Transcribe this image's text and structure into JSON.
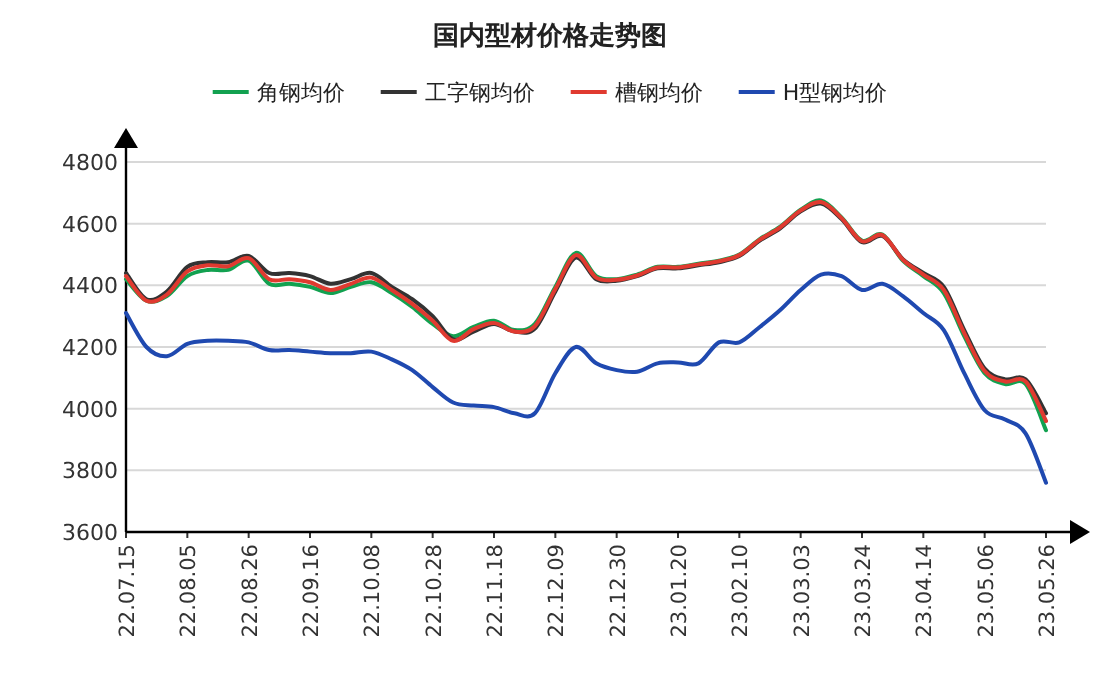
{
  "chart_data": {
    "type": "line",
    "title": "国内型材价格走势图",
    "categories": [
      "22.07.15",
      null,
      null,
      "22.08.05",
      null,
      null,
      "22.08.26",
      null,
      null,
      "22.09.16",
      null,
      null,
      "22.10.08",
      null,
      null,
      "22.10.28",
      null,
      null,
      "22.11.18",
      null,
      null,
      "22.12.09",
      null,
      null,
      "22.12.30",
      null,
      null,
      "23.01.20",
      null,
      null,
      "23.02.10",
      null,
      null,
      "23.03.03",
      null,
      null,
      "23.03.24",
      null,
      null,
      "23.04.14",
      null,
      null,
      "23.05.06",
      null,
      null,
      "23.05.26"
    ],
    "series": [
      {
        "name": "角钢均价",
        "color": "#12a150",
        "values": [
          4420,
          4350,
          4365,
          4430,
          4450,
          4450,
          4480,
          4405,
          4405,
          4395,
          4375,
          4395,
          4410,
          4375,
          4330,
          4275,
          4235,
          4265,
          4285,
          4255,
          4275,
          4395,
          4505,
          4430,
          4420,
          4435,
          4460,
          4460,
          4470,
          4480,
          4500,
          4550,
          4590,
          4645,
          4675,
          4620,
          4545,
          4565,
          4480,
          4430,
          4375,
          4235,
          4115,
          4080,
          4080,
          3930
        ]
      },
      {
        "name": "工字钢均价",
        "color": "#333333",
        "values": [
          4440,
          4355,
          4380,
          4460,
          4475,
          4475,
          4495,
          4440,
          4440,
          4430,
          4405,
          4420,
          4440,
          4395,
          4355,
          4300,
          4225,
          4250,
          4275,
          4250,
          4260,
          4380,
          4490,
          4420,
          4415,
          4430,
          4455,
          4455,
          4465,
          4475,
          4495,
          4545,
          4585,
          4640,
          4665,
          4615,
          4540,
          4560,
          4485,
          4440,
          4395,
          4255,
          4130,
          4095,
          4095,
          3985
        ]
      },
      {
        "name": "槽钢均价",
        "color": "#e03a30",
        "values": [
          4430,
          4350,
          4370,
          4445,
          4465,
          4462,
          4488,
          4420,
          4420,
          4410,
          4385,
          4405,
          4425,
          4385,
          4340,
          4285,
          4220,
          4258,
          4278,
          4250,
          4268,
          4388,
          4498,
          4425,
          4418,
          4432,
          4458,
          4458,
          4468,
          4478,
          4498,
          4548,
          4588,
          4643,
          4670,
          4618,
          4543,
          4563,
          4483,
          4435,
          4385,
          4245,
          4122,
          4088,
          4088,
          3960
        ]
      },
      {
        "name": "H型钢均价",
        "color": "#1f49b0",
        "values": [
          4310,
          4200,
          4170,
          4210,
          4220,
          4220,
          4215,
          4190,
          4190,
          4185,
          4180,
          4180,
          4185,
          4160,
          4125,
          4070,
          4020,
          4010,
          4005,
          3985,
          3985,
          4115,
          4200,
          4147,
          4125,
          4120,
          4147,
          4150,
          4147,
          4215,
          4215,
          4265,
          4320,
          4385,
          4435,
          4430,
          4385,
          4405,
          4365,
          4310,
          4255,
          4115,
          3995,
          3965,
          3920,
          3760
        ]
      }
    ],
    "ylim": [
      3600,
      4800
    ],
    "yticks": [
      3600,
      3800,
      4000,
      4200,
      4400,
      4600,
      4800
    ],
    "grid": "y",
    "legend": "top",
    "marker": "none",
    "line_style": "solid"
  }
}
